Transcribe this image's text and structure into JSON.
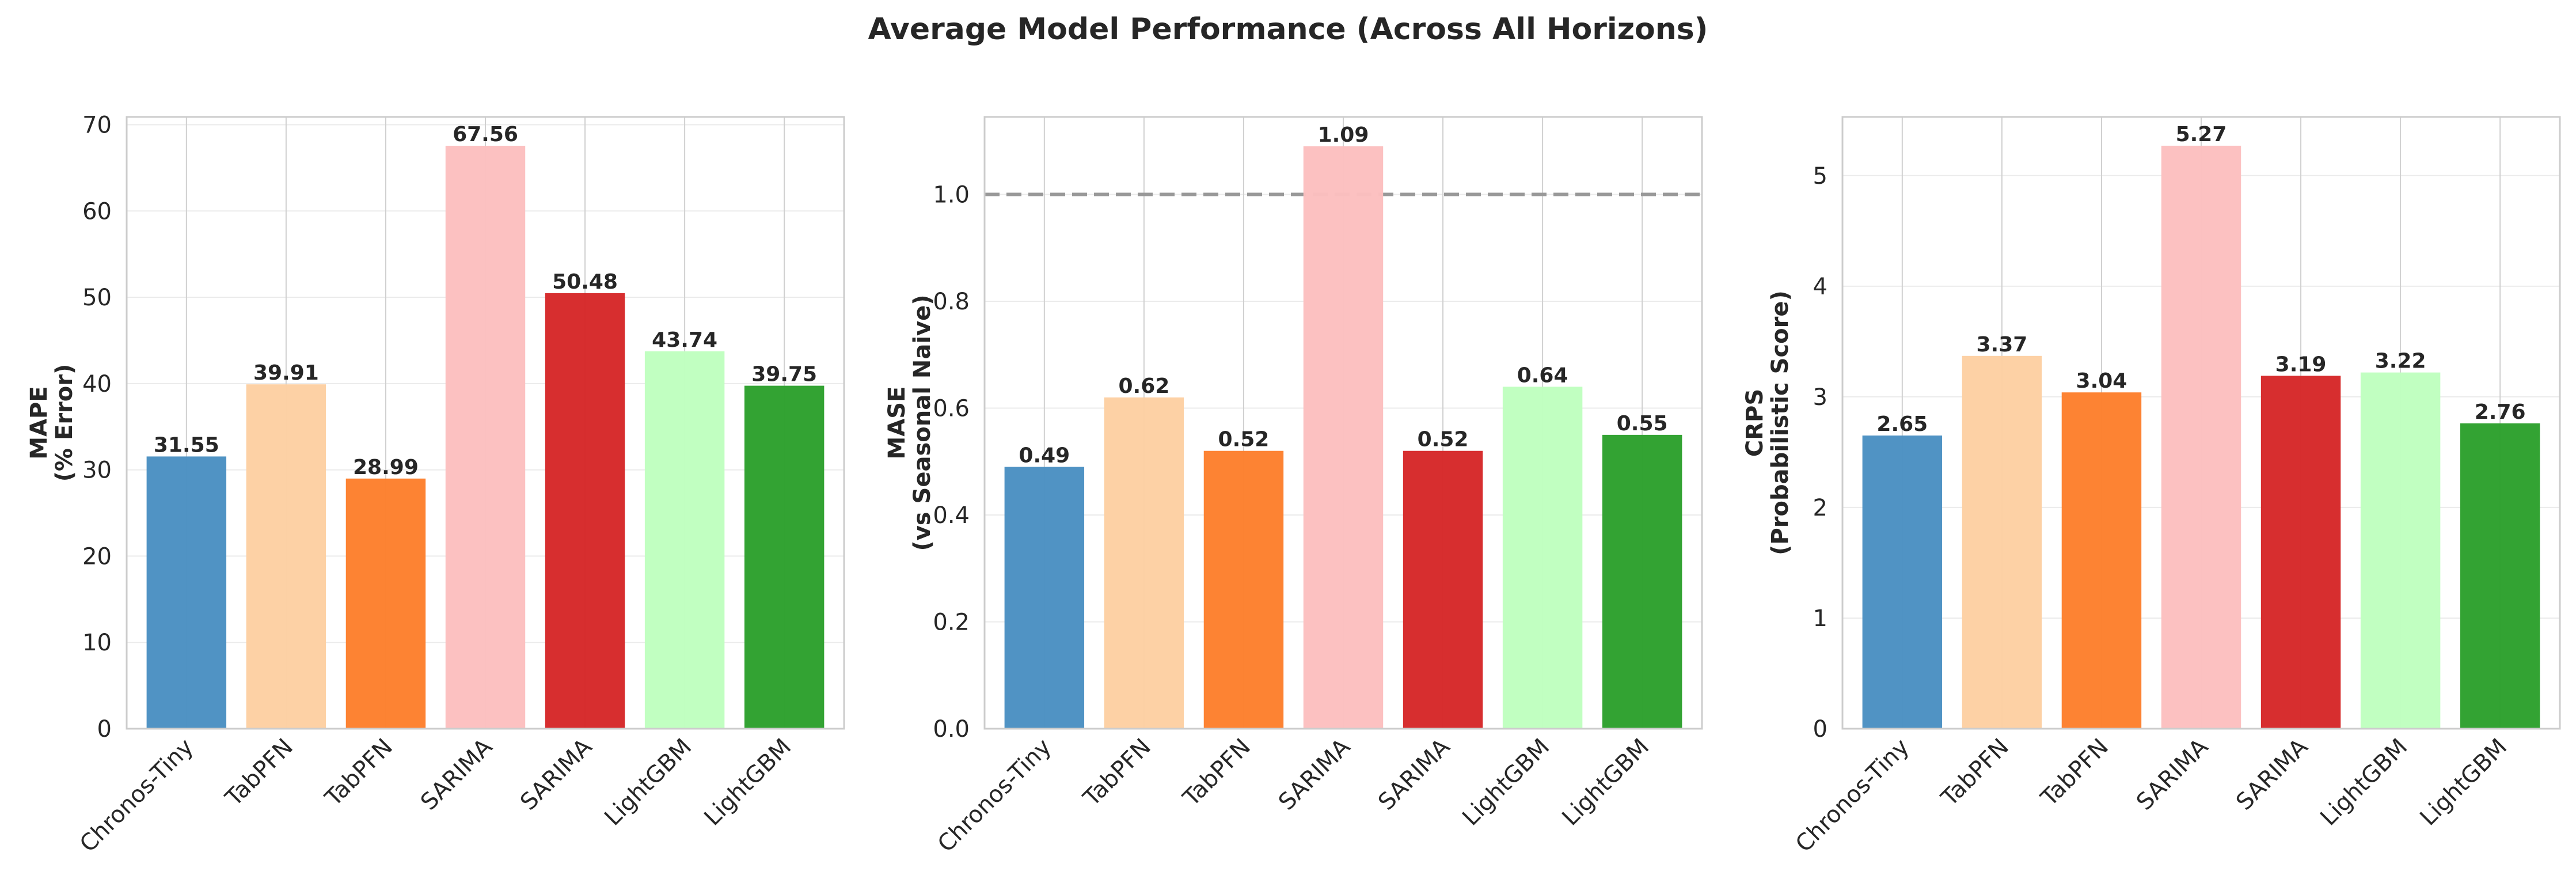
{
  "figure": {
    "title": "Average Model Performance (Across All Horizons)"
  },
  "chart_data": [
    {
      "type": "bar",
      "categories": [
        "Chronos-Tiny",
        "TabPFN",
        "TabPFN",
        "SARIMA",
        "SARIMA",
        "LightGBM",
        "LightGBM"
      ],
      "values": [
        31.55,
        39.91,
        28.99,
        67.56,
        50.48,
        43.74,
        39.75
      ],
      "value_labels": [
        "31.55",
        "39.91",
        "28.99",
        "67.56",
        "50.48",
        "43.74",
        "39.75"
      ],
      "colors": [
        "#4a90c2",
        "#fdd0a2",
        "#fd7f2c",
        "#fcbfbf",
        "#d62728",
        "#bfffbf",
        "#2ca02c"
      ],
      "ylabel_lines": [
        "MAPE",
        "(% Error)"
      ],
      "ylim": [
        0,
        70.9
      ],
      "yticks": [
        0,
        10,
        20,
        30,
        40,
        50,
        60,
        70
      ],
      "ytick_labels": [
        "0",
        "10",
        "20",
        "30",
        "40",
        "50",
        "60",
        "70"
      ],
      "grid": true,
      "reference_line": null
    },
    {
      "type": "bar",
      "categories": [
        "Chronos-Tiny",
        "TabPFN",
        "TabPFN",
        "SARIMA",
        "SARIMA",
        "LightGBM",
        "LightGBM"
      ],
      "values": [
        0.49,
        0.62,
        0.52,
        1.09,
        0.52,
        0.64,
        0.55
      ],
      "value_labels": [
        "0.49",
        "0.62",
        "0.52",
        "1.09",
        "0.52",
        "0.64",
        "0.55"
      ],
      "colors": [
        "#4a90c2",
        "#fdd0a2",
        "#fd7f2c",
        "#fcbfbf",
        "#d62728",
        "#bfffbf",
        "#2ca02c"
      ],
      "ylabel_lines": [
        "MASE",
        "(vs Seasonal Naive)"
      ],
      "ylim": [
        0,
        1.145
      ],
      "yticks": [
        0.0,
        0.2,
        0.4,
        0.6,
        0.8,
        1.0
      ],
      "ytick_labels": [
        "0.0",
        "0.2",
        "0.4",
        "0.6",
        "0.8",
        "1.0"
      ],
      "grid": true,
      "reference_line": {
        "y": 1.0,
        "style": "dashed",
        "color": "#999999"
      }
    },
    {
      "type": "bar",
      "categories": [
        "Chronos-Tiny",
        "TabPFN",
        "TabPFN",
        "SARIMA",
        "SARIMA",
        "LightGBM",
        "LightGBM"
      ],
      "values": [
        2.65,
        3.37,
        3.04,
        5.27,
        3.19,
        3.22,
        2.76
      ],
      "value_labels": [
        "2.65",
        "3.37",
        "3.04",
        "5.27",
        "3.19",
        "3.22",
        "2.76"
      ],
      "colors": [
        "#4a90c2",
        "#fdd0a2",
        "#fd7f2c",
        "#fcbfbf",
        "#d62728",
        "#bfffbf",
        "#2ca02c"
      ],
      "ylabel_lines": [
        "CRPS",
        "(Probabilistic Score)"
      ],
      "ylim": [
        0,
        5.53
      ],
      "yticks": [
        0,
        1,
        2,
        3,
        4,
        5
      ],
      "ytick_labels": [
        "0",
        "1",
        "2",
        "3",
        "4",
        "5"
      ],
      "grid": true,
      "reference_line": null
    }
  ]
}
